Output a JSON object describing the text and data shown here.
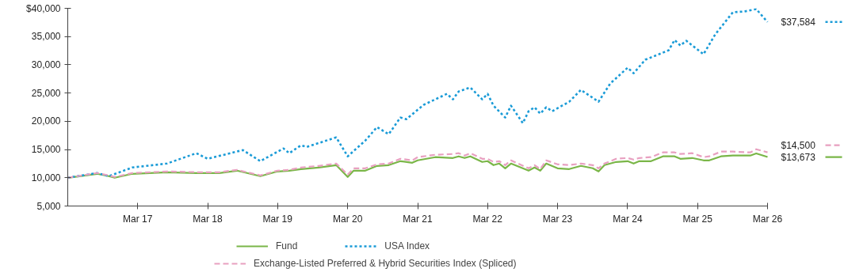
{
  "chart_data": {
    "type": "line",
    "xlim": [
      "2016-03",
      "2026-03"
    ],
    "xticks": [
      {
        "value": "2017-03",
        "label": "Mar 17"
      },
      {
        "value": "2018-03",
        "label": "Mar 18"
      },
      {
        "value": "2019-03",
        "label": "Mar 19"
      },
      {
        "value": "2020-03",
        "label": "Mar 20"
      },
      {
        "value": "2021-03",
        "label": "Mar 21"
      },
      {
        "value": "2022-03",
        "label": "Mar 22"
      },
      {
        "value": "2023-03",
        "label": "Mar 23"
      },
      {
        "value": "2024-03",
        "label": "Mar 24"
      },
      {
        "value": "2025-03",
        "label": "Mar 25"
      },
      {
        "value": "2026-03",
        "label": "Mar 26"
      }
    ],
    "ylim": [
      5000,
      40000
    ],
    "yticks": [
      {
        "value": 5000,
        "label": "5,000"
      },
      {
        "value": 10000,
        "label": "10,000"
      },
      {
        "value": 15000,
        "label": "15,000"
      },
      {
        "value": 20000,
        "label": "20,000"
      },
      {
        "value": 25000,
        "label": "25,000"
      },
      {
        "value": 30000,
        "label": "30,000"
      },
      {
        "value": 35000,
        "label": "35,000"
      },
      {
        "value": 40000,
        "label": "$40,000"
      }
    ],
    "grid": false,
    "legend": "bottom",
    "series": [
      {
        "name": "Fund",
        "color": "#7ab648",
        "line_style": "solid",
        "x": [
          "2016-03",
          "2016-08",
          "2016-10",
          "2016-11",
          "2017-02",
          "2017-08",
          "2018-01",
          "2018-05",
          "2018-08",
          "2018-12",
          "2019-03",
          "2019-05",
          "2019-07",
          "2019-10",
          "2020-01",
          "2020-03",
          "2020-04",
          "2020-06",
          "2020-08",
          "2020-10",
          "2020-12",
          "2021-02",
          "2021-03",
          "2021-06",
          "2021-09",
          "2021-10",
          "2021-11",
          "2021-12",
          "2022-02",
          "2022-03",
          "2022-04",
          "2022-05",
          "2022-06",
          "2022-07",
          "2022-10",
          "2022-11",
          "2022-12",
          "2023-01",
          "2023-03",
          "2023-05",
          "2023-07",
          "2023-09",
          "2023-10",
          "2023-11",
          "2024-01",
          "2024-03",
          "2024-04",
          "2024-05",
          "2024-07",
          "2024-09",
          "2024-11",
          "2024-12",
          "2025-02",
          "2025-04",
          "2025-05",
          "2025-07",
          "2025-09",
          "2025-12",
          "2026-01",
          "2026-03"
        ],
        "values": [
          10000,
          10700,
          10280,
          10000,
          10700,
          10980,
          10840,
          10840,
          11260,
          10280,
          11120,
          11260,
          11540,
          11820,
          12240,
          10140,
          11260,
          11260,
          12100,
          12240,
          12940,
          12660,
          13080,
          13650,
          13500,
          13790,
          13500,
          13790,
          12800,
          12940,
          12240,
          12520,
          11680,
          12520,
          11260,
          11820,
          11260,
          12520,
          11680,
          11540,
          12100,
          11680,
          11120,
          12240,
          12800,
          12940,
          12520,
          12940,
          12940,
          13790,
          13790,
          13360,
          13500,
          13080,
          13080,
          13790,
          13930,
          13930,
          14300,
          13673
        ],
        "value_labels": [
          null,
          null,
          null,
          null,
          null,
          null,
          null,
          null,
          null,
          null,
          null,
          null,
          null,
          null,
          null,
          null,
          null,
          null,
          null,
          null,
          null,
          null,
          null,
          null,
          null,
          null,
          null,
          null,
          null,
          null,
          null,
          null,
          null,
          null,
          null,
          null,
          null,
          null,
          null,
          null,
          null,
          null,
          null,
          null,
          null,
          null,
          null,
          null,
          null,
          null,
          null,
          null,
          null,
          null,
          null,
          null,
          null,
          null,
          null,
          "$13,673"
        ]
      },
      {
        "name": "USA Index",
        "color": "#1a9bd7",
        "line_style": "dotted",
        "x": [
          "2016-03",
          "2016-08",
          "2016-10",
          "2017-02",
          "2017-08",
          "2018-01",
          "2018-03",
          "2018-09",
          "2018-12",
          "2019-04",
          "2019-05",
          "2019-07",
          "2019-08",
          "2020-01",
          "2020-03",
          "2020-06",
          "2020-08",
          "2020-10",
          "2020-12",
          "2021-01",
          "2021-04",
          "2021-08",
          "2021-09",
          "2021-10",
          "2021-12",
          "2022-02",
          "2022-03",
          "2022-04",
          "2022-06",
          "2022-07",
          "2022-09",
          "2022-10",
          "2022-11",
          "2022-12",
          "2023-01",
          "2023-02",
          "2023-05",
          "2023-07",
          "2023-10",
          "2023-12",
          "2024-03",
          "2024-04",
          "2024-06",
          "2024-10",
          "2024-11",
          "2024-12",
          "2025-01",
          "2025-04",
          "2025-06",
          "2025-09",
          "2025-11",
          "2026-01",
          "2026-03"
        ],
        "values": [
          10000,
          10840,
          10280,
          11820,
          12520,
          14350,
          13360,
          14900,
          12940,
          15190,
          14350,
          15750,
          15470,
          17150,
          13790,
          16590,
          18970,
          17710,
          20660,
          20370,
          22900,
          24860,
          23880,
          25280,
          25980,
          23880,
          24860,
          22760,
          20660,
          22760,
          19670,
          21780,
          22480,
          21360,
          22480,
          21780,
          23460,
          25560,
          23460,
          26680,
          29490,
          28510,
          30890,
          32570,
          34390,
          33410,
          34250,
          31870,
          35380,
          39300,
          39440,
          39860,
          37584
        ],
        "value_labels": [
          null,
          null,
          null,
          null,
          null,
          null,
          null,
          null,
          null,
          null,
          null,
          null,
          null,
          null,
          null,
          null,
          null,
          null,
          null,
          null,
          null,
          null,
          null,
          null,
          null,
          null,
          null,
          null,
          null,
          null,
          null,
          null,
          null,
          null,
          null,
          null,
          null,
          null,
          null,
          null,
          null,
          null,
          null,
          null,
          null,
          null,
          null,
          null,
          null,
          null,
          null,
          null,
          "$37,584"
        ]
      },
      {
        "name": "Exchange-Listed Preferred & Hybrid Securities Index (Spliced)",
        "color": "#e8a0c0",
        "line_style": "dashed",
        "x": [
          "2016-03",
          "2016-08",
          "2016-10",
          "2016-11",
          "2017-02",
          "2017-08",
          "2018-01",
          "2018-05",
          "2018-08",
          "2018-12",
          "2019-03",
          "2019-05",
          "2019-07",
          "2019-10",
          "2020-01",
          "2020-03",
          "2020-04",
          "2020-06",
          "2020-08",
          "2020-10",
          "2020-12",
          "2021-02",
          "2021-03",
          "2021-06",
          "2021-09",
          "2021-10",
          "2021-11",
          "2021-12",
          "2022-02",
          "2022-03",
          "2022-04",
          "2022-05",
          "2022-06",
          "2022-07",
          "2022-10",
          "2022-11",
          "2022-12",
          "2023-01",
          "2023-03",
          "2023-05",
          "2023-07",
          "2023-09",
          "2023-10",
          "2023-11",
          "2024-01",
          "2024-03",
          "2024-04",
          "2024-05",
          "2024-07",
          "2024-09",
          "2024-11",
          "2024-12",
          "2025-02",
          "2025-04",
          "2025-05",
          "2025-07",
          "2025-09",
          "2025-12",
          "2026-01",
          "2026-03"
        ],
        "values": [
          10000,
          10840,
          10420,
          10140,
          10840,
          11120,
          10980,
          10980,
          11400,
          10420,
          11260,
          11400,
          11820,
          12100,
          12520,
          10560,
          11680,
          11680,
          12380,
          12520,
          13360,
          13080,
          13650,
          14070,
          14210,
          14350,
          13930,
          14350,
          13360,
          13360,
          12800,
          12940,
          12240,
          13080,
          11680,
          12240,
          11540,
          13080,
          12380,
          12240,
          12520,
          12240,
          11680,
          12520,
          13360,
          13500,
          13220,
          13500,
          13650,
          14490,
          14490,
          14210,
          14350,
          13650,
          13790,
          14630,
          14630,
          14490,
          15050,
          14500
        ],
        "value_labels": [
          null,
          null,
          null,
          null,
          null,
          null,
          null,
          null,
          null,
          null,
          null,
          null,
          null,
          null,
          null,
          null,
          null,
          null,
          null,
          null,
          null,
          null,
          null,
          null,
          null,
          null,
          null,
          null,
          null,
          null,
          null,
          null,
          null,
          null,
          null,
          null,
          null,
          null,
          null,
          null,
          null,
          null,
          null,
          null,
          null,
          null,
          null,
          null,
          null,
          null,
          null,
          null,
          null,
          null,
          null,
          null,
          null,
          null,
          null,
          "$14,500"
        ]
      }
    ]
  }
}
